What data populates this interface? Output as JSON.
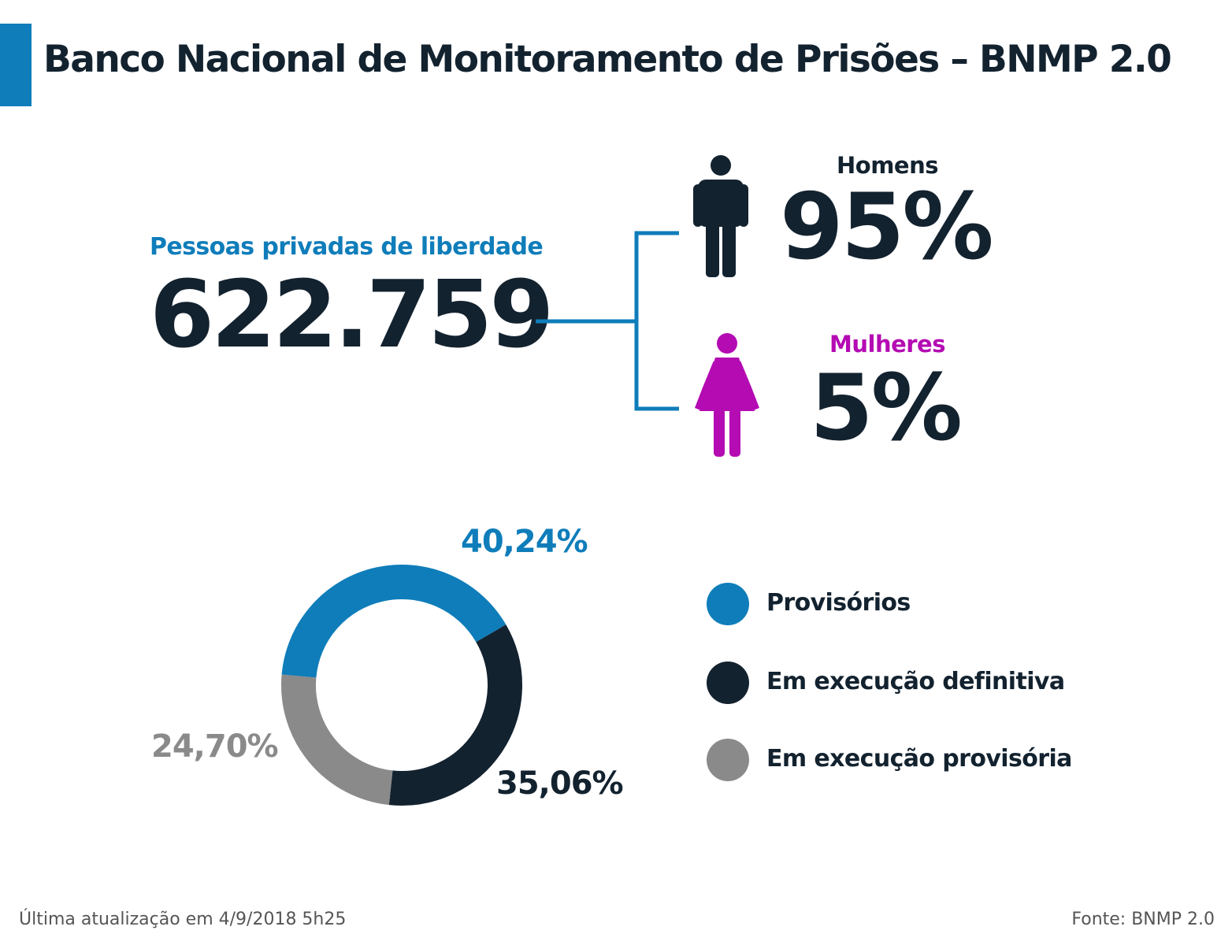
{
  "title": "Banco Nacional de Monitoramento de Prisões – BNMP 2.0",
  "total": {
    "label": "Pessoas privadas de liberdade",
    "value": "622.759"
  },
  "gender": {
    "men": {
      "label": "Homens",
      "value": "95%",
      "icon": "man-icon",
      "color": "#13222f"
    },
    "women": {
      "label": "Mulheres",
      "value": "5%",
      "icon": "woman-icon",
      "color": "#b40bb3"
    }
  },
  "colors": {
    "accent": "#0f7dba",
    "dark": "#13222f",
    "gray": "#8a8a8a",
    "magenta": "#b40bb3"
  },
  "chart_data": {
    "type": "pie",
    "categories": [
      "Provisórios",
      "Em execução definitiva",
      "Em execução provisória"
    ],
    "values": [
      40.24,
      35.06,
      24.7
    ],
    "value_labels": [
      "40,24%",
      "35,06%",
      "24,70%"
    ],
    "colors": [
      "#0f7dba",
      "#13222f",
      "#8a8a8a"
    ],
    "legend_position": "right"
  },
  "legend": {
    "items": [
      {
        "label": "Provisórios",
        "color": "#0f7dba"
      },
      {
        "label": "Em execução definitiva",
        "color": "#13222f"
      },
      {
        "label": "Em execução provisória",
        "color": "#8a8a8a"
      }
    ]
  },
  "footer": {
    "updated": "Última atualização em 4/9/2018 5h25",
    "source": "Fonte: BNMP 2.0"
  }
}
